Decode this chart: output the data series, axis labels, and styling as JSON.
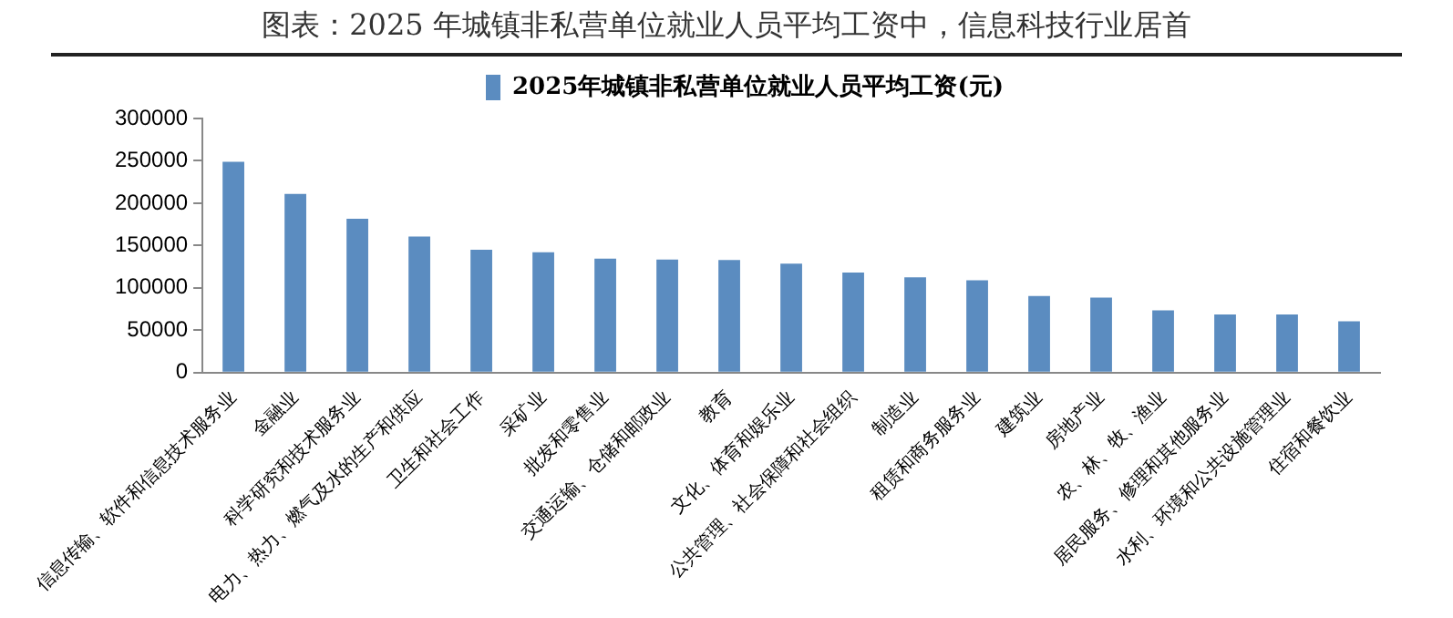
{
  "chart_data": {
    "type": "bar",
    "title": "图表：2025 年城镇非私营单位就业人员平均工资中，信息科技行业居首",
    "categories": [
      "信息传输、软件和信息技术服务业",
      "金融业",
      "科学研究和技术服务业",
      "电力、热力、燃气及水的生产和供应",
      "卫生和社会工作",
      "采矿业",
      "批发和零售业",
      "交通运输、仓储和邮政业",
      "教育",
      "文化、体育和娱乐业",
      "公共管理、社会保障和社会组织",
      "制造业",
      "租赁和商务服务业",
      "建筑业",
      "房地产业",
      "农、林、牧、渔业",
      "居民服务、修理和其他服务业",
      "水利、环境和公共设施管理业",
      "住宿和餐饮业"
    ],
    "series": [
      {
        "name": "2025年城镇非私营单位就业人员平均工资(元)",
        "color": "#5b8cc0",
        "values": [
          249000,
          211000,
          181500,
          160500,
          145000,
          142000,
          134500,
          133500,
          133000,
          128500,
          118000,
          112500,
          109000,
          90500,
          88500,
          73500,
          68500,
          68500,
          60500
        ]
      }
    ],
    "ylim": [
      0,
      300000
    ],
    "yticks": [
      0,
      50000,
      100000,
      150000,
      200000,
      250000,
      300000
    ],
    "grid": false,
    "legend": "top"
  }
}
